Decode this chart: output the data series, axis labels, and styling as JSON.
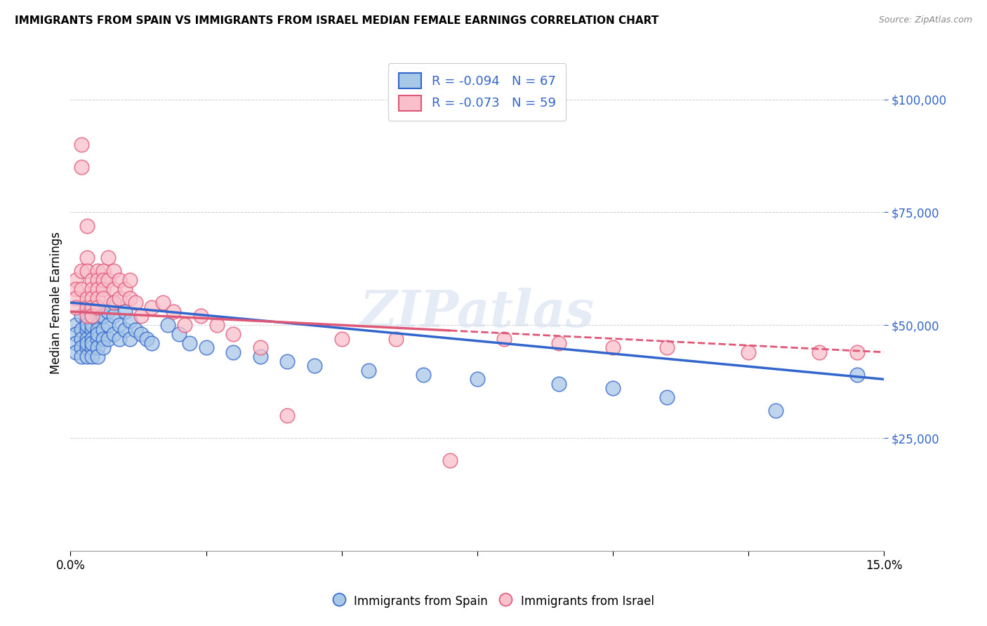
{
  "title": "IMMIGRANTS FROM SPAIN VS IMMIGRANTS FROM ISRAEL MEDIAN FEMALE EARNINGS CORRELATION CHART",
  "source": "Source: ZipAtlas.com",
  "ylabel": "Median Female Earnings",
  "ytick_labels": [
    "$25,000",
    "$50,000",
    "$75,000",
    "$100,000"
  ],
  "ytick_values": [
    25000,
    50000,
    75000,
    100000
  ],
  "xlim": [
    0.0,
    0.15
  ],
  "ylim": [
    0,
    110000
  ],
  "legend_r_spain": "R = -0.094",
  "legend_n_spain": "N = 67",
  "legend_r_israel": "R = -0.073",
  "legend_n_israel": "N = 59",
  "color_spain": "#a8c8e8",
  "color_israel": "#f9c0cb",
  "line_color_spain": "#3366cc",
  "line_color_israel": "#e05878",
  "tick_label_color": "#3366cc",
  "watermark": "ZIPatlas",
  "spain_x": [
    0.001,
    0.001,
    0.001,
    0.001,
    0.002,
    0.002,
    0.002,
    0.002,
    0.002,
    0.003,
    0.003,
    0.003,
    0.003,
    0.003,
    0.003,
    0.003,
    0.003,
    0.004,
    0.004,
    0.004,
    0.004,
    0.004,
    0.004,
    0.004,
    0.005,
    0.005,
    0.005,
    0.005,
    0.005,
    0.005,
    0.005,
    0.006,
    0.006,
    0.006,
    0.006,
    0.007,
    0.007,
    0.007,
    0.008,
    0.008,
    0.008,
    0.009,
    0.009,
    0.01,
    0.01,
    0.011,
    0.011,
    0.012,
    0.013,
    0.014,
    0.015,
    0.018,
    0.02,
    0.022,
    0.025,
    0.03,
    0.035,
    0.04,
    0.045,
    0.055,
    0.065,
    0.075,
    0.09,
    0.1,
    0.11,
    0.13,
    0.145
  ],
  "spain_y": [
    50000,
    48000,
    46000,
    44000,
    52000,
    49000,
    47000,
    45000,
    43000,
    54000,
    51000,
    49000,
    47000,
    45000,
    43000,
    50000,
    46000,
    52000,
    49000,
    47000,
    45000,
    43000,
    50000,
    46000,
    54000,
    51000,
    49000,
    47000,
    45000,
    43000,
    48000,
    52000,
    49000,
    47000,
    45000,
    53000,
    50000,
    47000,
    55000,
    52000,
    48000,
    50000,
    47000,
    53000,
    49000,
    51000,
    47000,
    49000,
    48000,
    47000,
    46000,
    50000,
    48000,
    46000,
    45000,
    44000,
    43000,
    42000,
    41000,
    40000,
    39000,
    38000,
    37000,
    36000,
    34000,
    31000,
    39000
  ],
  "israel_x": [
    0.001,
    0.001,
    0.001,
    0.001,
    0.002,
    0.002,
    0.002,
    0.002,
    0.003,
    0.003,
    0.003,
    0.003,
    0.003,
    0.003,
    0.004,
    0.004,
    0.004,
    0.004,
    0.004,
    0.005,
    0.005,
    0.005,
    0.005,
    0.005,
    0.006,
    0.006,
    0.006,
    0.006,
    0.007,
    0.007,
    0.008,
    0.008,
    0.008,
    0.009,
    0.009,
    0.01,
    0.011,
    0.011,
    0.012,
    0.013,
    0.015,
    0.017,
    0.019,
    0.021,
    0.024,
    0.027,
    0.03,
    0.035,
    0.04,
    0.05,
    0.06,
    0.07,
    0.08,
    0.09,
    0.1,
    0.11,
    0.125,
    0.138,
    0.145
  ],
  "israel_y": [
    60000,
    58000,
    56000,
    54000,
    62000,
    90000,
    85000,
    58000,
    65000,
    72000,
    62000,
    56000,
    54000,
    52000,
    60000,
    58000,
    56000,
    54000,
    52000,
    62000,
    60000,
    58000,
    56000,
    54000,
    62000,
    60000,
    58000,
    56000,
    65000,
    60000,
    62000,
    58000,
    55000,
    60000,
    56000,
    58000,
    60000,
    56000,
    55000,
    52000,
    54000,
    55000,
    53000,
    50000,
    52000,
    50000,
    48000,
    45000,
    30000,
    47000,
    47000,
    20000,
    47000,
    46000,
    45000,
    45000,
    44000,
    44000,
    44000
  ]
}
